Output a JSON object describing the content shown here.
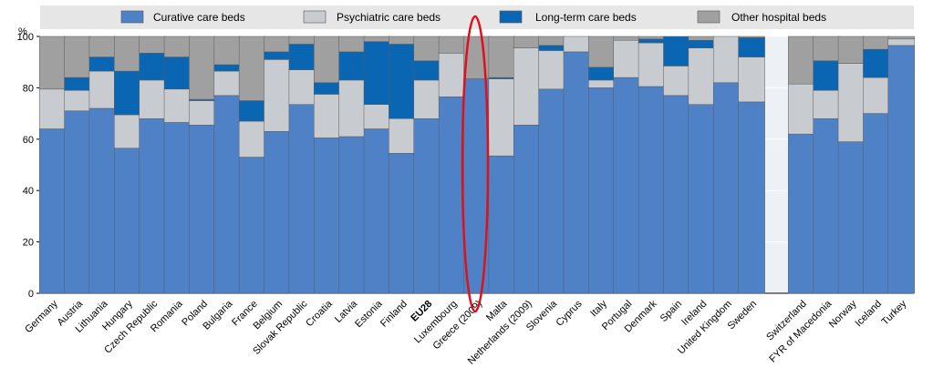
{
  "colors": {
    "curative": "#4f81c7",
    "psychiatric": "#c8ccd0",
    "long_term": "#0a66b2",
    "other": "#a0a0a0",
    "grid": "#ffffff",
    "plot_background": "#dfe6ee",
    "legend_background": "#e6e6e6",
    "highlight_ellipse": "#e0101a"
  },
  "chart_data": {
    "type": "bar",
    "stacked": true,
    "unit_label": "%",
    "ylim": [
      0,
      100
    ],
    "yticks": [
      0,
      20,
      40,
      60,
      80,
      100
    ],
    "legend_placement": "top",
    "grid": true,
    "categories": [
      "Germany",
      "Austria",
      "Lithuania",
      "Hungary",
      "Czech Republic",
      "Romania",
      "Poland",
      "Bulgaria",
      "France",
      "Belgium",
      "Slovak Republic",
      "Croatia",
      "Latvia",
      "Estonia",
      "Finland",
      "EU28",
      "Luxembourg",
      "Greece (2009)",
      "Malta",
      "Netherlands (2009)",
      "Slovenia",
      "Cyprus",
      "Italy",
      "Portugal",
      "Denmark",
      "Spain",
      "Ireland",
      "United Kingdom",
      "Sweden",
      "",
      "Switzerland",
      "FYR of Macedonia",
      "Norway",
      "Iceland",
      "Turkey"
    ],
    "emphasized_category": "EU28",
    "highlighted_category": "Greece (2009)",
    "series": [
      {
        "name": "Curative care beds",
        "key": "curative",
        "values": [
          64,
          71,
          72,
          56.5,
          68,
          66.5,
          65.5,
          77,
          53,
          63,
          73.5,
          60.5,
          61,
          64,
          54.5,
          68,
          76.5,
          83.5,
          53.5,
          65.5,
          79.5,
          94,
          80,
          84,
          80.5,
          77,
          73.5,
          82,
          74.5,
          0,
          62,
          68,
          59,
          70,
          96.5
        ]
      },
      {
        "name": "Psychiatric care beds",
        "key": "psychiatric",
        "values": [
          15.5,
          8,
          14.5,
          13,
          15,
          13,
          9.5,
          9.5,
          14,
          28,
          13.5,
          17,
          22,
          9.5,
          13.5,
          15,
          17,
          0,
          30,
          30,
          15,
          6,
          3,
          14.5,
          17,
          11.5,
          22,
          18,
          17.5,
          0,
          19.5,
          11,
          30.5,
          14,
          2.5
        ]
      },
      {
        "name": "Long-term care beds",
        "key": "long_term",
        "values": [
          0,
          5,
          5.5,
          17,
          10.5,
          12.5,
          0.5,
          2.5,
          8,
          3,
          10,
          4.5,
          11,
          24.5,
          29,
          7.5,
          0,
          0,
          0.5,
          0,
          2,
          0,
          5,
          0,
          1.5,
          11.5,
          3,
          0,
          7.5,
          0,
          0,
          11.5,
          0,
          11,
          0
        ]
      },
      {
        "name": "Other hospital beds",
        "key": "other",
        "values": [
          20.5,
          16,
          8,
          13.5,
          6.5,
          8,
          24.5,
          11,
          25,
          6,
          3,
          18,
          6,
          2,
          3,
          9.5,
          6.5,
          16.5,
          16,
          4.5,
          3.5,
          0,
          12,
          1.5,
          1,
          0,
          1.5,
          0,
          0.5,
          0,
          18.5,
          9.5,
          10.5,
          5,
          1
        ]
      }
    ]
  }
}
